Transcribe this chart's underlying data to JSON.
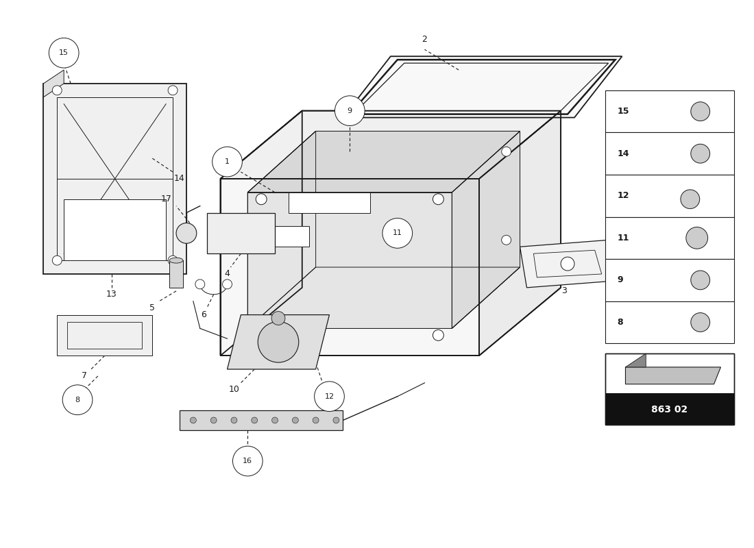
{
  "bg_color": "#ffffff",
  "line_color": "#1a1a1a",
  "watermark_color": "#c8b87a",
  "part_number": "863 02",
  "sidebar_parts": [
    15,
    14,
    12,
    11,
    9,
    8
  ],
  "figsize": [
    11.0,
    8.0
  ],
  "dpi": 100
}
